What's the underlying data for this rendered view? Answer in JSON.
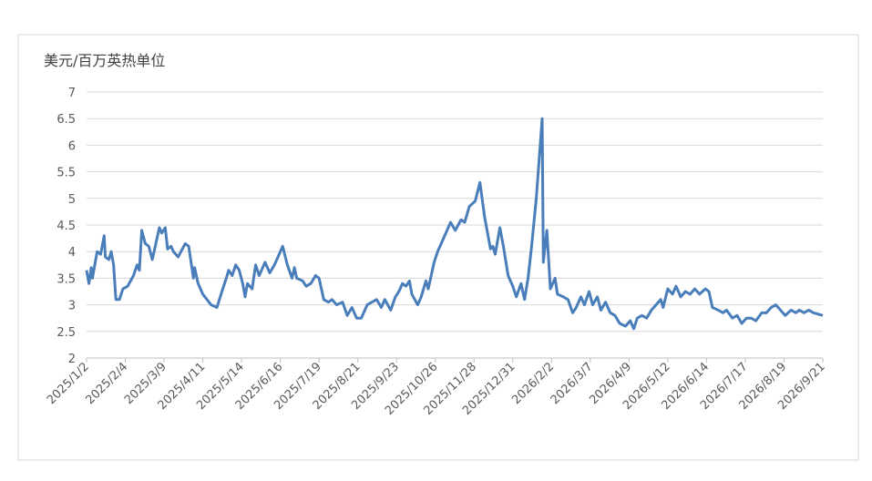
{
  "chart_data": {
    "type": "line",
    "y_label": "美元/百万英热单位",
    "color": "#4a7ebb",
    "grid": true,
    "ylim": [
      2,
      7
    ],
    "yticks": [
      2,
      2.5,
      3,
      3.5,
      4,
      4.5,
      5,
      5.5,
      6,
      6.5,
      7
    ],
    "xlim": [
      "2025/1/2",
      "2026/9/21"
    ],
    "xticks": [
      "2025/1/2",
      "2025/2/4",
      "2025/3/9",
      "2025/4/11",
      "2025/5/14",
      "2025/6/16",
      "2025/7/19",
      "2025/8/21",
      "2025/9/23",
      "2025/10/26",
      "2025/11/28",
      "2025/12/31",
      "2026/2/2",
      "2026/3/7",
      "2026/4/9",
      "2026/5/12",
      "2026/6/14",
      "2026/7/17",
      "2026/8/19",
      "2026/9/21"
    ],
    "x": [
      "2025/1/2",
      "2025/1/4",
      "2025/1/6",
      "2025/1/7",
      "2025/1/11",
      "2025/1/14",
      "2025/1/17",
      "2025/1/18",
      "2025/1/21",
      "2025/1/23",
      "2025/1/25",
      "2025/1/27",
      "2025/1/30",
      "2025/2/2",
      "2025/2/6",
      "2025/2/11",
      "2025/2/14",
      "2025/2/16",
      "2025/2/18",
      "2025/2/21",
      "2025/2/24",
      "2025/2/27",
      "2025/3/2",
      "2025/3/5",
      "2025/3/7",
      "2025/3/10",
      "2025/3/12",
      "2025/3/15",
      "2025/3/17",
      "2025/3/21",
      "2025/3/27",
      "2025/3/30",
      "2025/4/3",
      "2025/4/4",
      "2025/4/7",
      "2025/4/11",
      "2025/4/18",
      "2025/4/23",
      "2025/4/28",
      "2025/5/1",
      "2025/5/3",
      "2025/5/6",
      "2025/5/9",
      "2025/5/12",
      "2025/5/15",
      "2025/5/17",
      "2025/5/19",
      "2025/5/23",
      "2025/5/26",
      "2025/5/29",
      "2025/6/3",
      "2025/6/7",
      "2025/6/11",
      "2025/6/18",
      "2025/6/22",
      "2025/6/26",
      "2025/6/28",
      "2025/6/30",
      "2025/7/5",
      "2025/7/8",
      "2025/7/12",
      "2025/7/16",
      "2025/7/19",
      "2025/7/23",
      "2025/7/27",
      "2025/7/30",
      "2025/8/3",
      "2025/8/8",
      "2025/8/12",
      "2025/8/16",
      "2025/8/20",
      "2025/8/24",
      "2025/8/29",
      "2025/9/2",
      "2025/9/6",
      "2025/9/10",
      "2025/9/13",
      "2025/9/18",
      "2025/9/22",
      "2025/9/25",
      "2025/9/28",
      "2025/10/1",
      "2025/10/4",
      "2025/10/6",
      "2025/10/11",
      "2025/10/14",
      "2025/10/18",
      "2025/10/20",
      "2025/10/25",
      "2025/10/28",
      "2025/11/1",
      "2025/11/4",
      "2025/11/8",
      "2025/11/12",
      "2025/11/17",
      "2025/11/20",
      "2025/11/24",
      "2025/11/29",
      "2025/12/3",
      "2025/12/7",
      "2025/12/12",
      "2025/12/14",
      "2025/12/16",
      "2025/12/20",
      "2025/12/23",
      "2025/12/27",
      "2025/12/31",
      "2026/1/3",
      "2026/1/7",
      "2026/1/10",
      "2026/1/13",
      "2026/1/16",
      "2026/1/20",
      "2026/1/25",
      "2026/1/26",
      "2026/1/29",
      "2026/2/1",
      "2026/2/5",
      "2026/2/7",
      "2026/2/12",
      "2026/2/16",
      "2026/2/20",
      "2026/2/23",
      "2026/2/27",
      "2026/3/2",
      "2026/3/6",
      "2026/3/9",
      "2026/3/13",
      "2026/3/16",
      "2026/3/20",
      "2026/3/24",
      "2026/3/28",
      "2026/4/1",
      "2026/4/6",
      "2026/4/10",
      "2026/4/13",
      "2026/4/16",
      "2026/4/20",
      "2026/4/24",
      "2026/4/28",
      "2026/5/2",
      "2026/5/6",
      "2026/5/8",
      "2026/5/12",
      "2026/5/16",
      "2026/5/19",
      "2026/5/23",
      "2026/5/27",
      "2026/5/31",
      "2026/6/4",
      "2026/6/8",
      "2026/6/13",
      "2026/6/16",
      "2026/6/19",
      "2026/6/24",
      "2026/6/28",
      "2026/7/1",
      "2026/7/6",
      "2026/7/10",
      "2026/7/14",
      "2026/7/18",
      "2026/7/22",
      "2026/7/26",
      "2026/7/31",
      "2026/8/4",
      "2026/8/8",
      "2026/8/12",
      "2026/8/16",
      "2026/8/20",
      "2026/8/25",
      "2026/8/29",
      "2026/9/1",
      "2026/9/5",
      "2026/9/9",
      "2026/9/13",
      "2026/9/21"
    ],
    "values": [
      3.65,
      3.4,
      3.7,
      3.5,
      4.0,
      3.95,
      4.3,
      3.9,
      3.85,
      4.0,
      3.75,
      3.1,
      3.1,
      3.3,
      3.35,
      3.55,
      3.75,
      3.65,
      4.4,
      4.15,
      4.1,
      3.85,
      4.15,
      4.45,
      4.35,
      4.45,
      4.05,
      4.1,
      4.0,
      3.9,
      4.15,
      4.1,
      3.5,
      3.7,
      3.4,
      3.2,
      3.0,
      2.95,
      3.3,
      3.5,
      3.65,
      3.55,
      3.75,
      3.65,
      3.4,
      3.15,
      3.4,
      3.3,
      3.75,
      3.55,
      3.8,
      3.6,
      3.75,
      4.1,
      3.75,
      3.5,
      3.7,
      3.5,
      3.45,
      3.35,
      3.4,
      3.55,
      3.5,
      3.1,
      3.05,
      3.1,
      3.0,
      3.05,
      2.8,
      2.95,
      2.75,
      2.75,
      3.0,
      3.05,
      3.1,
      2.95,
      3.1,
      2.9,
      3.15,
      3.25,
      3.4,
      3.35,
      3.45,
      3.2,
      3.0,
      3.15,
      3.45,
      3.3,
      3.8,
      4.0,
      4.2,
      4.35,
      4.55,
      4.4,
      4.6,
      4.55,
      4.85,
      4.95,
      5.3,
      4.65,
      4.05,
      4.1,
      3.95,
      4.45,
      4.1,
      3.55,
      3.35,
      3.15,
      3.4,
      3.1,
      3.5,
      4.1,
      5.0,
      6.5,
      3.8,
      4.4,
      3.3,
      3.5,
      3.2,
      3.15,
      3.1,
      2.85,
      2.95,
      3.15,
      3.0,
      3.25,
      3.0,
      3.15,
      2.9,
      3.05,
      2.85,
      2.8,
      2.65,
      2.6,
      2.7,
      2.55,
      2.75,
      2.8,
      2.75,
      2.9,
      3.0,
      3.1,
      2.95,
      3.3,
      3.2,
      3.35,
      3.15,
      3.25,
      3.2,
      3.3,
      3.2,
      3.3,
      3.25,
      2.95,
      2.9,
      2.85,
      2.9,
      2.75,
      2.8,
      2.65,
      2.75,
      2.75,
      2.7,
      2.85,
      2.85,
      2.95,
      3.0,
      2.9,
      2.8,
      2.9,
      2.85,
      2.9,
      2.85,
      2.9,
      2.85,
      2.8
    ]
  }
}
